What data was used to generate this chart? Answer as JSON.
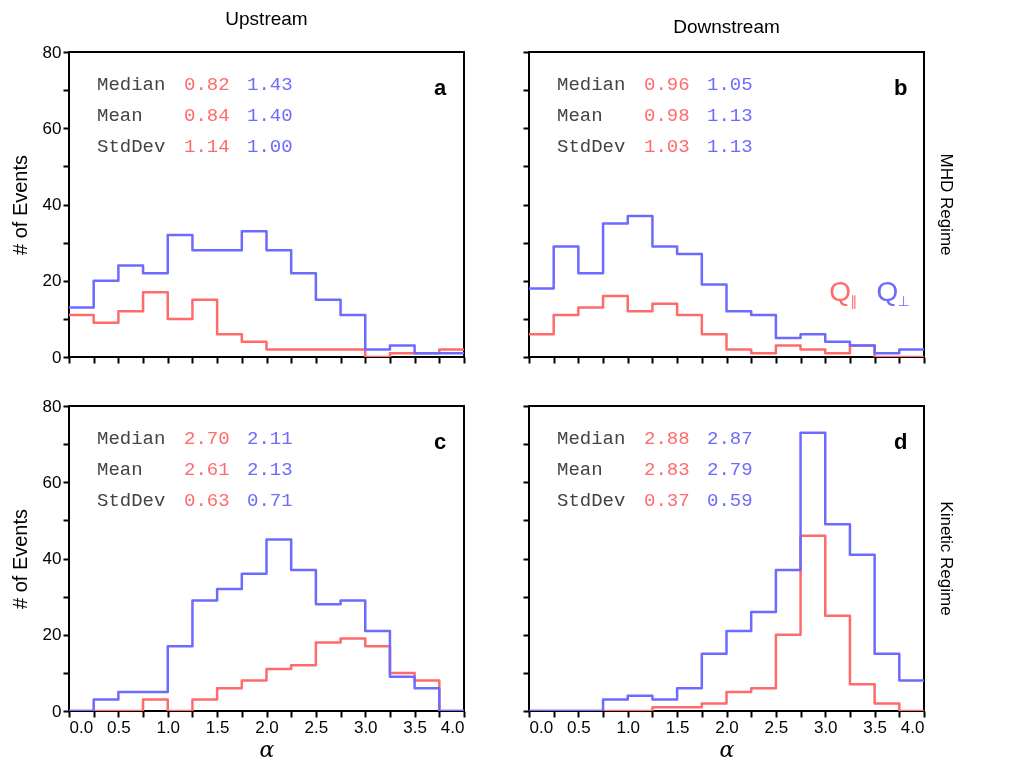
{
  "chart_data": [
    {
      "type": "histogram",
      "title": "Upstream",
      "ylabel": "# of Events",
      "tick_labels": "y",
      "bins": [
        0,
        0.25,
        0.5,
        0.75,
        1,
        1.25,
        1.5,
        1.75,
        2,
        2.25,
        2.5,
        2.75,
        3,
        3.25,
        3.5,
        3.75,
        4
      ],
      "series": [
        {
          "color": "#ff6b6b",
          "values": [
            11,
            9,
            12,
            17,
            10,
            15,
            6,
            4,
            2,
            2,
            2,
            2,
            0,
            1,
            1,
            2
          ]
        },
        {
          "color": "#6b6bff",
          "values": [
            13,
            20,
            24,
            22,
            32,
            28,
            28,
            33,
            28,
            22,
            15,
            11,
            2,
            3,
            1,
            1
          ]
        }
      ],
      "annotations": [
        "Median",
        "0.82",
        "1.43",
        "Mean",
        "0.84",
        "1.40",
        "StdDev",
        "1.14",
        "1.00",
        "a"
      ],
      "xlim": [
        0,
        4
      ],
      "ylim": [
        0,
        80
      ],
      "xticks": [
        {
          "value": 0,
          "label": null
        },
        {
          "value": 0.25,
          "label": null
        },
        {
          "value": 0.5,
          "label": null
        },
        {
          "value": 0.75,
          "label": null
        },
        {
          "value": 1,
          "label": null
        },
        {
          "value": 1.25,
          "label": null
        },
        {
          "value": 1.5,
          "label": null
        },
        {
          "value": 1.75,
          "label": null
        },
        {
          "value": 2,
          "label": null
        },
        {
          "value": 2.25,
          "label": null
        },
        {
          "value": 2.5,
          "label": null
        },
        {
          "value": 2.75,
          "label": null
        },
        {
          "value": 3,
          "label": null
        },
        {
          "value": 3.25,
          "label": null
        },
        {
          "value": 3.5,
          "label": null
        },
        {
          "value": 3.75,
          "label": null
        },
        {
          "value": 4,
          "label": null
        }
      ],
      "yticks": [
        0,
        {
          "value": 10,
          "label": null
        },
        20,
        {
          "value": 30,
          "label": null
        },
        40,
        {
          "value": 50,
          "label": null
        },
        60,
        {
          "value": 70,
          "label": null
        },
        80
      ]
    },
    {
      "type": "histogram",
      "title": "Downstream",
      "y2label": "MHD Regime",
      "tick_labels": false,
      "bins": [
        0,
        0.25,
        0.5,
        0.75,
        1,
        1.25,
        1.5,
        1.75,
        2,
        2.25,
        2.5,
        2.75,
        3,
        3.25,
        3.5,
        3.75,
        4
      ],
      "series": [
        {
          "name": "Q$_{∥}$",
          "color": "#ff6b6b",
          "values": [
            6,
            11,
            13,
            16,
            12,
            14,
            11,
            6,
            2,
            1,
            3,
            2,
            1,
            3,
            0,
            0
          ]
        },
        {
          "name": "Q$_{⊥}$",
          "color": "#6b6bff",
          "values": [
            18,
            29,
            22,
            35,
            37,
            29,
            27,
            19,
            12,
            11,
            5,
            6,
            4,
            3,
            1,
            2
          ]
        }
      ],
      "annotations": [
        "Median",
        "0.96",
        "1.05",
        "Mean",
        "0.98",
        "1.13",
        "StdDev",
        "1.03",
        "1.13",
        "b"
      ],
      "xlim": [
        0,
        4
      ],
      "ylim": [
        0,
        80
      ],
      "xticks": [
        {
          "value": 0,
          "label": null
        },
        {
          "value": 0.25,
          "label": null
        },
        {
          "value": 0.5,
          "label": null
        },
        {
          "value": 0.75,
          "label": null
        },
        {
          "value": 1,
          "label": null
        },
        {
          "value": 1.25,
          "label": null
        },
        {
          "value": 1.5,
          "label": null
        },
        {
          "value": 1.75,
          "label": null
        },
        {
          "value": 2,
          "label": null
        },
        {
          "value": 2.25,
          "label": null
        },
        {
          "value": 2.5,
          "label": null
        },
        {
          "value": 2.75,
          "label": null
        },
        {
          "value": 3,
          "label": null
        },
        {
          "value": 3.25,
          "label": null
        },
        {
          "value": 3.5,
          "label": null
        },
        {
          "value": 3.75,
          "label": null
        },
        {
          "value": 4,
          "label": null
        }
      ],
      "yticks": [
        {
          "value": 0,
          "label": null
        },
        {
          "value": 10,
          "label": null
        },
        {
          "value": 20,
          "label": null
        },
        {
          "value": 30,
          "label": null
        },
        {
          "value": 40,
          "label": null
        },
        {
          "value": 50,
          "label": null
        },
        {
          "value": 60,
          "label": null
        },
        {
          "value": 70,
          "label": null
        },
        {
          "value": 80,
          "label": null
        }
      ]
    },
    {
      "type": "histogram",
      "xlabel": "α",
      "ylabel": "# of Events",
      "bins": [
        0,
        0.25,
        0.5,
        0.75,
        1,
        1.25,
        1.5,
        1.75,
        2,
        2.25,
        2.5,
        2.75,
        3,
        3.25,
        3.5,
        3.75,
        4
      ],
      "series": [
        {
          "color": "#ff6b6b",
          "values": [
            0,
            0,
            0,
            3,
            0,
            3,
            6,
            8,
            11,
            12,
            18,
            19,
            17,
            10,
            8,
            0
          ]
        },
        {
          "color": "#6b6bff",
          "values": [
            0,
            3,
            5,
            5,
            17,
            29,
            32,
            36,
            45,
            37,
            28,
            29,
            21,
            9,
            6,
            0
          ]
        }
      ],
      "annotations": [
        "Median",
        "2.70",
        "2.11",
        "Mean",
        "2.61",
        "2.13",
        "StdDev",
        "0.63",
        "0.71",
        "c"
      ],
      "xlim": [
        0,
        4
      ],
      "ylim": [
        0,
        80
      ],
      "xticks": [
        {
          "value": 0,
          "label": "0.0"
        },
        {
          "value": 0.25,
          "label": null
        },
        0.5,
        {
          "value": 0.75,
          "label": null
        },
        {
          "value": 1,
          "label": "1.0"
        },
        {
          "value": 1.25,
          "label": null
        },
        1.5,
        {
          "value": 1.75,
          "label": null
        },
        {
          "value": 2,
          "label": "2.0"
        },
        {
          "value": 2.25,
          "label": null
        },
        2.5,
        {
          "value": 2.75,
          "label": null
        },
        {
          "value": 3,
          "label": "3.0"
        },
        {
          "value": 3.25,
          "label": null
        },
        3.5,
        {
          "value": 3.75,
          "label": null
        },
        {
          "value": 4,
          "label": "4.0"
        }
      ],
      "yticks": [
        0,
        {
          "value": 10,
          "label": null
        },
        20,
        {
          "value": 30,
          "label": null
        },
        40,
        {
          "value": 50,
          "label": null
        },
        60,
        {
          "value": 70,
          "label": null
        },
        80
      ]
    },
    {
      "type": "histogram",
      "xlabel": "α",
      "y2label": "Kinetic Regime",
      "tick_labels": "x",
      "bins": [
        0,
        0.25,
        0.5,
        0.75,
        1,
        1.25,
        1.5,
        1.75,
        2,
        2.25,
        2.5,
        2.75,
        3,
        3.25,
        3.5,
        3.75,
        4
      ],
      "series": [
        {
          "color": "#ff6b6b",
          "values": [
            0,
            0,
            0,
            0,
            0,
            1,
            1,
            2,
            5,
            6,
            20,
            46,
            25,
            7,
            2,
            0
          ]
        },
        {
          "color": "#6b6bff",
          "values": [
            0,
            0,
            0,
            3,
            4,
            3,
            6,
            15,
            21,
            26,
            37,
            73,
            49,
            41,
            15,
            8
          ]
        }
      ],
      "annotations": [
        "Median",
        "2.88",
        "2.87",
        "Mean",
        "2.83",
        "2.79",
        "StdDev",
        "0.37",
        "0.59",
        "d"
      ],
      "xlim": [
        0,
        4
      ],
      "ylim": [
        0,
        80
      ],
      "xticks": [
        {
          "value": 0,
          "label": "0.0"
        },
        {
          "value": 0.25,
          "label": null
        },
        0.5,
        {
          "value": 0.75,
          "label": null
        },
        {
          "value": 1,
          "label": "1.0"
        },
        {
          "value": 1.25,
          "label": null
        },
        1.5,
        {
          "value": 1.75,
          "label": null
        },
        {
          "value": 2,
          "label": "2.0"
        },
        {
          "value": 2.25,
          "label": null
        },
        2.5,
        {
          "value": 2.75,
          "label": null
        },
        {
          "value": 3,
          "label": "3.0"
        },
        {
          "value": 3.25,
          "label": null
        },
        3.5,
        {
          "value": 3.75,
          "label": null
        },
        {
          "value": 4,
          "label": "4.0"
        }
      ],
      "yticks": [
        {
          "value": 0,
          "label": null
        },
        {
          "value": 10,
          "label": null
        },
        {
          "value": 20,
          "label": null
        },
        {
          "value": 30,
          "label": null
        },
        {
          "value": 40,
          "label": null
        },
        {
          "value": 50,
          "label": null
        },
        {
          "value": 60,
          "label": null
        },
        {
          "value": 70,
          "label": null
        },
        {
          "value": 80,
          "label": null
        }
      ]
    }
  ]
}
